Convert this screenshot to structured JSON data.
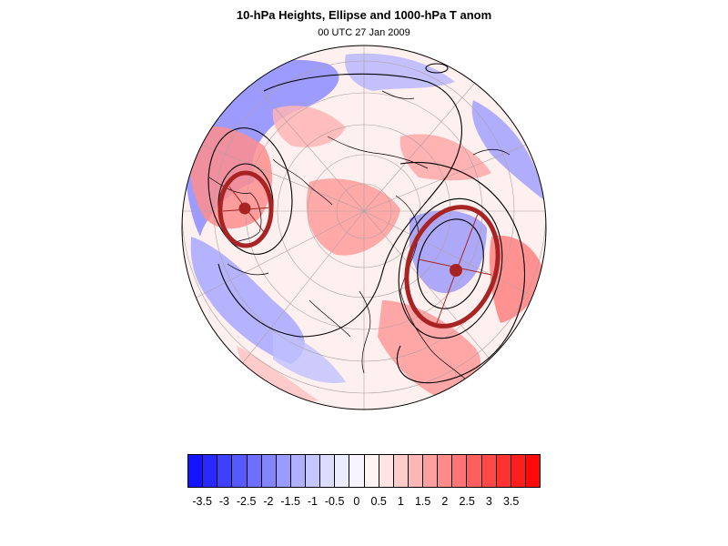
{
  "title": "10-hPa Heights, Ellipse and 1000-hPa T anom",
  "subtitle": "00 UTC 27 Jan 2009",
  "map": {
    "projection": "orthographic (north polar)",
    "field": "1000-hPa T anom",
    "contours": "10-hPa Heights",
    "overlay": "Ellipse",
    "colors": {
      "ellipse": "#a82424",
      "contour": "#000000",
      "coast": "#000000",
      "grid": "#b0a0a0"
    }
  },
  "colorbar": {
    "colors": [
      "#1414ff",
      "#2828ff",
      "#4040ff",
      "#5858ff",
      "#6e6eff",
      "#8484ff",
      "#9a9aff",
      "#b0b0ff",
      "#c6c6ff",
      "#dcdcff",
      "#ececff",
      "#f8f4ff",
      "#fff4f4",
      "#ffe4e4",
      "#ffcccc",
      "#ffb6b6",
      "#ffa0a0",
      "#ff8a8a",
      "#ff7474",
      "#ff5e5e",
      "#ff4848",
      "#ff3232",
      "#ff1e1e",
      "#ff0a0a"
    ],
    "labels": [
      "-3.5",
      "-3",
      "-2.5",
      "-2",
      "-1.5",
      "-1",
      "-0.5",
      "0",
      "0.5",
      "1",
      "1.5",
      "2",
      "2.5",
      "3",
      "3.5"
    ]
  }
}
